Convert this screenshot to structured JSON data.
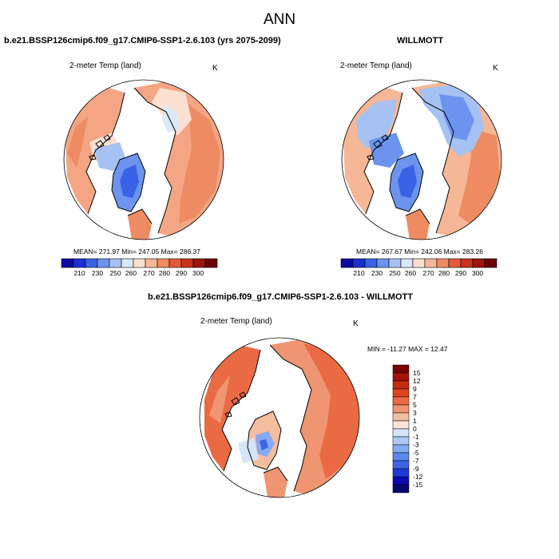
{
  "figure": {
    "title": "ANN",
    "colors": {
      "abs_scale": [
        "#0c0aa0",
        "#1c30d0",
        "#3a62e6",
        "#6c94ee",
        "#a5c2f2",
        "#dae8f8",
        "#fbe0d2",
        "#f6b796",
        "#ee8b63",
        "#e4593b",
        "#c8321e",
        "#9c160c",
        "#6a0303"
      ],
      "diff_scale": [
        "#080873",
        "#0a0ab0",
        "#1c3cd8",
        "#3c64e6",
        "#5a88ee",
        "#84aaf2",
        "#adc8f5",
        "#d6e4f9",
        "#fbe3d6",
        "#f5bd9f",
        "#ef9572",
        "#ea6a44",
        "#e0441f",
        "#c82a10",
        "#a41205",
        "#780202"
      ]
    },
    "panels": [
      {
        "id": "model",
        "case_title": "b.e21.BSSP126cmip6.f09_g17.CMIP6-SSP1-2.6.103 (yrs 2075-2099)",
        "variable": "2-meter Temp (land)",
        "units": "K",
        "stats": "MEAN= 271.97  Min= 247.05  Max= 286.37",
        "colorbar_labels": [
          "210",
          "230",
          "250",
          "260",
          "270",
          "280",
          "290",
          "300"
        ]
      },
      {
        "id": "obs",
        "case_title": "WILLMOTT",
        "variable": "2-meter Temp (land)",
        "units": "K",
        "stats": "MEAN= 267.67  Min= 242.06  Max= 283.26",
        "colorbar_labels": [
          "210",
          "230",
          "250",
          "260",
          "270",
          "280",
          "290",
          "300"
        ]
      },
      {
        "id": "diff",
        "case_title": "b.e21.BSSP126cmip6.f09_g17.CMIP6-SSP1-2.6.103 - WILLMOTT",
        "variable": "2-meter Temp (land)",
        "units": "K",
        "stats": "MIN = -11.27 MAX =  12.47",
        "colorbar_labels": [
          "15",
          "12",
          "9",
          "7",
          "5",
          "3",
          "1",
          "0",
          "-1",
          "-3",
          "-5",
          "-7",
          "-9",
          "-12",
          "-15"
        ]
      }
    ]
  }
}
